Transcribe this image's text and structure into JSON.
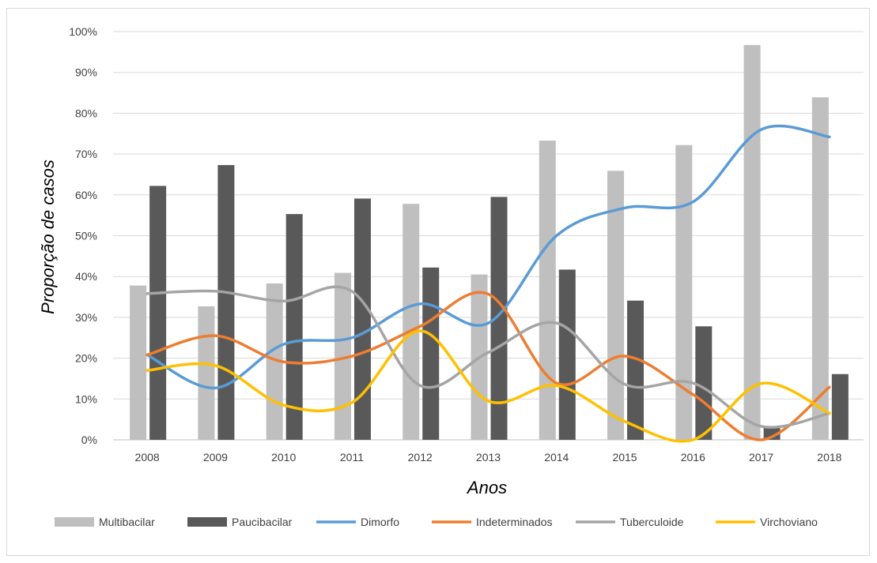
{
  "chart_data": {
    "type": "bar",
    "title": "",
    "xlabel": "Anos",
    "ylabel": "Proporção de casos",
    "categories": [
      "2008",
      "2009",
      "2010",
      "2011",
      "2012",
      "2013",
      "2014",
      "2015",
      "2016",
      "2017",
      "2018"
    ],
    "ylim": [
      0,
      100
    ],
    "y_ticks": [
      "0%",
      "10%",
      "20%",
      "30%",
      "40%",
      "50%",
      "60%",
      "70%",
      "80%",
      "90%",
      "100%"
    ],
    "grid": true,
    "legend_position": "bottom",
    "bar_series": [
      {
        "name": "Multibacilar",
        "color": "#bfbfbf",
        "values": [
          37.8,
          32.7,
          38.3,
          40.9,
          57.8,
          40.5,
          73.3,
          65.9,
          72.2,
          96.7,
          83.9
        ]
      },
      {
        "name": "Paucibacilar",
        "color": "#595959",
        "values": [
          62.2,
          67.3,
          55.3,
          59.1,
          42.2,
          59.5,
          41.7,
          34.1,
          27.8,
          3.3,
          16.1
        ]
      }
    ],
    "line_series": [
      {
        "name": "Dimorfo",
        "color": "#5b9bd5",
        "values": [
          20.8,
          12.7,
          23.4,
          25.0,
          33.3,
          28.6,
          50.0,
          56.8,
          58.3,
          76.0,
          74.2
        ]
      },
      {
        "name": "Indeterminados",
        "color": "#ed7d31",
        "values": [
          20.8,
          25.5,
          19.1,
          20.5,
          27.8,
          35.7,
          13.9,
          20.5,
          11.1,
          0.0,
          12.9
        ]
      },
      {
        "name": "Tuberculoide",
        "color": "#a5a5a5",
        "values": [
          35.8,
          36.4,
          34.0,
          36.4,
          13.3,
          21.4,
          28.6,
          13.6,
          13.9,
          3.3,
          6.5
        ]
      },
      {
        "name": "Virchoviano",
        "color": "#ffc000",
        "values": [
          17.0,
          18.2,
          8.5,
          9.1,
          26.7,
          9.5,
          13.3,
          4.5,
          0.0,
          13.8,
          6.5
        ]
      }
    ]
  }
}
